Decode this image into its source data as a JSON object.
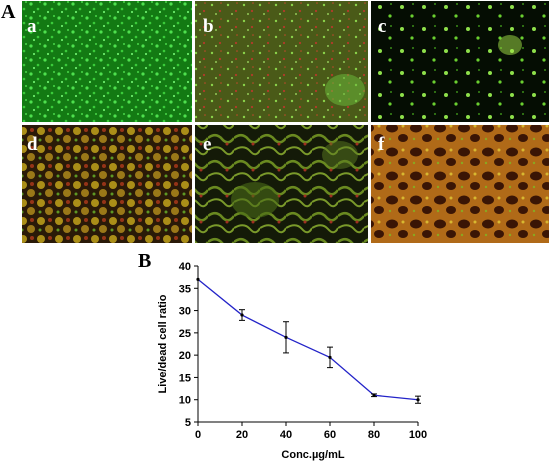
{
  "figure": {
    "panel_a_label": "A",
    "panel_b_label": "B"
  },
  "micrographs": [
    {
      "label": "a",
      "stain": "green",
      "description_color": "#1f9a1f"
    },
    {
      "label": "b",
      "stain": "green-red mix",
      "description_color": "#5a6a1a"
    },
    {
      "label": "c",
      "stain": "sparse green on black",
      "description_color": "#0a1a05"
    },
    {
      "label": "d",
      "stain": "yellow-red mesh",
      "description_color": "#6a5a10"
    },
    {
      "label": "e",
      "stain": "dark with green clusters",
      "description_color": "#2a3010"
    },
    {
      "label": "f",
      "stain": "orange-red mesh",
      "description_color": "#8a5010"
    }
  ],
  "chart_data": {
    "type": "line",
    "xlabel": "Conc.µg/mL",
    "ylabel": "Live/dead cell ratio",
    "xlim": [
      0,
      100
    ],
    "ylim": [
      5,
      40
    ],
    "xticks": [
      0,
      20,
      40,
      60,
      80,
      100
    ],
    "yticks": [
      5,
      10,
      15,
      20,
      25,
      30,
      35,
      40
    ],
    "series": [
      {
        "x": [
          0,
          20,
          40,
          60,
          80,
          100
        ],
        "y": [
          37,
          29,
          24,
          19.5,
          11,
          10
        ],
        "error": [
          0,
          1.2,
          3.5,
          2.3,
          0.3,
          0.8
        ],
        "color": "#2323c8"
      }
    ],
    "grid": false
  }
}
